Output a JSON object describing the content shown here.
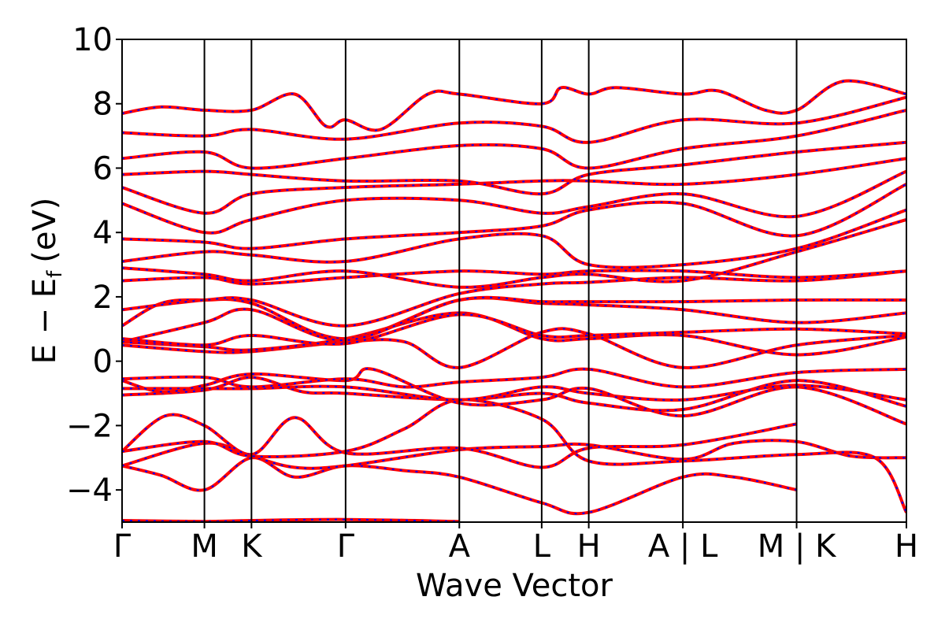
{
  "chart_data": {
    "type": "line",
    "title": "",
    "xlabel": "Wave Vector",
    "ylabel": "E − E",
    "ylabel_subscript": "f",
    "ylabel_unit": "(eV)",
    "ylim": [
      -5,
      10
    ],
    "yticks": [
      -4,
      -2,
      0,
      2,
      4,
      6,
      8,
      10
    ],
    "xlim": [
      0,
      10
    ],
    "kpoints": [
      {
        "label": "Γ",
        "x": 0
      },
      {
        "label": "M",
        "x": 1.05
      },
      {
        "label": "K",
        "x": 1.65
      },
      {
        "label": "Γ",
        "x": 2.85
      },
      {
        "label": "A",
        "x": 4.3
      },
      {
        "label": "L",
        "x": 5.35
      },
      {
        "label": "H",
        "x": 5.95
      },
      {
        "label": "A | L",
        "x": 7.15
      },
      {
        "label": "M | K",
        "x": 8.6
      },
      {
        "label": "H",
        "x": 10
      }
    ],
    "colors": {
      "band_primary": "#ff0000",
      "band_secondary": "#0000ff",
      "axis": "#000000"
    },
    "grid": false,
    "series": [
      {
        "values": [
          [
            0,
            -4.95
          ],
          [
            1.05,
            -4.98
          ],
          [
            1.65,
            -4.95
          ],
          [
            2.85,
            -4.92
          ],
          [
            4.3,
            -4.98
          ]
        ]
      },
      {
        "values": [
          [
            0,
            -3.25
          ],
          [
            0.5,
            -3.55
          ],
          [
            1.05,
            -4.0
          ],
          [
            1.65,
            -3.0
          ],
          [
            2.2,
            -3.6
          ],
          [
            2.85,
            -3.25
          ],
          [
            3.6,
            -3.4
          ],
          [
            4.3,
            -3.6
          ],
          [
            5.35,
            -4.4
          ],
          [
            5.95,
            -4.7
          ],
          [
            7.15,
            -3.6
          ],
          [
            7.8,
            -3.6
          ],
          [
            8.6,
            -4.0
          ]
        ]
      },
      {
        "values": [
          [
            0,
            -3.25
          ],
          [
            1.05,
            -2.55
          ],
          [
            1.65,
            -2.95
          ],
          [
            2.2,
            -3.3
          ],
          [
            2.85,
            -3.25
          ],
          [
            4.3,
            -2.75
          ],
          [
            5.35,
            -2.65
          ],
          [
            5.95,
            -2.6
          ],
          [
            7.15,
            -3.05
          ],
          [
            7.8,
            -2.55
          ],
          [
            8.6,
            -2.5
          ],
          [
            9.3,
            -2.95
          ],
          [
            10,
            -3.0
          ]
        ]
      },
      {
        "values": [
          [
            0,
            -2.8
          ],
          [
            0.55,
            -1.7
          ],
          [
            1.05,
            -2.0
          ],
          [
            1.65,
            -2.9
          ],
          [
            2.2,
            -1.75
          ],
          [
            2.85,
            -2.85
          ],
          [
            4.3,
            -2.7
          ],
          [
            5.35,
            -3.3
          ],
          [
            5.95,
            -2.7
          ],
          [
            7.15,
            -2.6
          ],
          [
            8.6,
            -1.95
          ]
        ]
      },
      {
        "values": [
          [
            0,
            -2.8
          ],
          [
            1.05,
            -2.5
          ],
          [
            1.65,
            -2.95
          ],
          [
            2.85,
            -2.8
          ],
          [
            3.6,
            -2.1
          ],
          [
            4.3,
            -1.2
          ],
          [
            5.35,
            -1.8
          ],
          [
            5.95,
            -3.1
          ],
          [
            7.15,
            -3.1
          ],
          [
            8.6,
            -2.9
          ],
          [
            9.6,
            -3.0
          ],
          [
            10,
            -4.7
          ]
        ]
      },
      {
        "values": [
          [
            0,
            -1.05
          ],
          [
            1.05,
            -0.9
          ],
          [
            1.65,
            -0.5
          ],
          [
            2.3,
            -0.95
          ],
          [
            2.85,
            -1.0
          ],
          [
            4.3,
            -1.2
          ],
          [
            5.35,
            -1.0
          ],
          [
            5.95,
            -1.3
          ],
          [
            7.15,
            -1.5
          ],
          [
            8.6,
            -0.6
          ],
          [
            10,
            -1.4
          ]
        ]
      },
      {
        "values": [
          [
            0,
            -0.85
          ],
          [
            1.05,
            -0.85
          ],
          [
            1.65,
            -0.85
          ],
          [
            2.85,
            -0.8
          ],
          [
            4.3,
            -1.2
          ],
          [
            5.35,
            -0.8
          ],
          [
            5.95,
            -1.0
          ],
          [
            7.15,
            -1.2
          ],
          [
            8.6,
            -0.75
          ],
          [
            10,
            -1.2
          ]
        ]
      },
      {
        "values": [
          [
            0,
            -0.6
          ],
          [
            0.5,
            -0.95
          ],
          [
            1.05,
            -0.75
          ],
          [
            1.65,
            -0.4
          ],
          [
            2.85,
            -0.6
          ],
          [
            3.2,
            -0.25
          ],
          [
            4.3,
            -1.3
          ],
          [
            5.35,
            -1.2
          ],
          [
            5.95,
            -0.85
          ],
          [
            7.15,
            -1.7
          ],
          [
            8.6,
            -0.8
          ],
          [
            10,
            -1.95
          ]
        ]
      },
      {
        "values": [
          [
            0,
            -0.55
          ],
          [
            1.05,
            -0.5
          ],
          [
            1.65,
            -0.8
          ],
          [
            2.85,
            -0.55
          ],
          [
            3.6,
            -0.8
          ],
          [
            4.3,
            -0.65
          ],
          [
            5.35,
            -0.5
          ],
          [
            5.95,
            -0.25
          ],
          [
            7.15,
            -0.8
          ],
          [
            8.6,
            -0.35
          ],
          [
            10,
            -0.25
          ]
        ]
      },
      {
        "values": [
          [
            0,
            0.5
          ],
          [
            1.05,
            0.3
          ],
          [
            1.65,
            0.3
          ],
          [
            2.85,
            0.6
          ],
          [
            3.6,
            0.6
          ],
          [
            4.3,
            -0.2
          ],
          [
            5.35,
            0.9
          ],
          [
            5.95,
            0.85
          ],
          [
            7.15,
            -0.2
          ],
          [
            8.6,
            0.5
          ],
          [
            10,
            0.8
          ]
        ]
      },
      {
        "values": [
          [
            0,
            0.6
          ],
          [
            1.05,
            0.45
          ],
          [
            1.65,
            0.35
          ],
          [
            2.85,
            0.7
          ],
          [
            4.3,
            1.5
          ],
          [
            5.35,
            0.7
          ],
          [
            5.95,
            0.7
          ],
          [
            7.15,
            0.8
          ],
          [
            8.6,
            0.2
          ],
          [
            10,
            0.75
          ]
        ]
      },
      {
        "values": [
          [
            0,
            0.7
          ],
          [
            1.05,
            0.5
          ],
          [
            1.65,
            0.8
          ],
          [
            2.85,
            0.55
          ],
          [
            4.3,
            1.45
          ],
          [
            5.35,
            0.8
          ],
          [
            5.95,
            0.8
          ],
          [
            7.15,
            0.9
          ],
          [
            8.6,
            1.0
          ],
          [
            10,
            0.85
          ]
        ]
      },
      {
        "values": [
          [
            0,
            1.1
          ],
          [
            0.5,
            1.8
          ],
          [
            1.05,
            1.9
          ],
          [
            1.65,
            1.8
          ],
          [
            2.85,
            0.7
          ],
          [
            4.3,
            1.9
          ],
          [
            5.35,
            1.8
          ],
          [
            5.95,
            1.75
          ],
          [
            7.15,
            1.6
          ],
          [
            8.6,
            1.2
          ],
          [
            10,
            1.5
          ]
        ]
      },
      {
        "values": [
          [
            0,
            0.6
          ],
          [
            1.05,
            1.2
          ],
          [
            1.65,
            1.6
          ],
          [
            2.85,
            0.65
          ],
          [
            4.3,
            1.9
          ],
          [
            5.35,
            1.85
          ],
          [
            5.95,
            1.85
          ],
          [
            7.15,
            1.85
          ],
          [
            8.6,
            1.9
          ],
          [
            10,
            1.9
          ]
        ]
      },
      {
        "values": [
          [
            0,
            1.6
          ],
          [
            1.05,
            1.9
          ],
          [
            1.65,
            1.9
          ],
          [
            2.85,
            1.1
          ],
          [
            4.3,
            2.1
          ],
          [
            5.35,
            2.4
          ],
          [
            5.95,
            2.45
          ],
          [
            7.15,
            2.6
          ],
          [
            8.6,
            2.5
          ],
          [
            10,
            2.8
          ]
        ]
      },
      {
        "values": [
          [
            0,
            2.5
          ],
          [
            1.05,
            2.6
          ],
          [
            1.65,
            2.4
          ],
          [
            2.85,
            2.6
          ],
          [
            4.3,
            2.8
          ],
          [
            5.35,
            2.7
          ],
          [
            5.95,
            2.8
          ],
          [
            7.15,
            2.8
          ],
          [
            8.6,
            2.6
          ],
          [
            10,
            2.8
          ]
        ]
      },
      {
        "values": [
          [
            0,
            2.9
          ],
          [
            1.05,
            2.7
          ],
          [
            1.65,
            2.5
          ],
          [
            2.85,
            2.8
          ],
          [
            4.3,
            2.3
          ],
          [
            5.35,
            2.6
          ],
          [
            5.95,
            2.7
          ],
          [
            7.15,
            2.5
          ],
          [
            8.6,
            3.4
          ],
          [
            10,
            4.4
          ]
        ]
      },
      {
        "values": [
          [
            0,
            3.1
          ],
          [
            1.05,
            3.4
          ],
          [
            1.65,
            3.3
          ],
          [
            2.85,
            3.1
          ],
          [
            4.3,
            3.8
          ],
          [
            5.35,
            3.9
          ],
          [
            5.95,
            3.0
          ],
          [
            7.15,
            3.0
          ],
          [
            8.6,
            3.5
          ],
          [
            10,
            4.7
          ]
        ]
      },
      {
        "values": [
          [
            0,
            3.8
          ],
          [
            1.05,
            3.7
          ],
          [
            1.65,
            3.5
          ],
          [
            2.85,
            3.8
          ],
          [
            4.3,
            4.0
          ],
          [
            5.35,
            4.2
          ],
          [
            5.95,
            4.7
          ],
          [
            7.15,
            4.9
          ],
          [
            8.6,
            3.9
          ],
          [
            10,
            5.5
          ]
        ]
      },
      {
        "values": [
          [
            0,
            4.9
          ],
          [
            1.05,
            4.0
          ],
          [
            1.65,
            4.4
          ],
          [
            2.85,
            5.0
          ],
          [
            4.3,
            5.0
          ],
          [
            5.35,
            4.6
          ],
          [
            5.95,
            4.8
          ],
          [
            7.15,
            5.2
          ],
          [
            8.6,
            4.5
          ],
          [
            10,
            5.9
          ]
        ]
      },
      {
        "values": [
          [
            0,
            5.4
          ],
          [
            1.05,
            4.6
          ],
          [
            1.65,
            5.2
          ],
          [
            2.85,
            5.4
          ],
          [
            4.3,
            5.5
          ],
          [
            5.35,
            5.6
          ],
          [
            5.95,
            5.6
          ],
          [
            7.15,
            5.5
          ],
          [
            8.6,
            5.8
          ],
          [
            10,
            6.3
          ]
        ]
      },
      {
        "values": [
          [
            0,
            5.8
          ],
          [
            1.05,
            5.9
          ],
          [
            1.65,
            5.8
          ],
          [
            2.85,
            5.6
          ],
          [
            4.3,
            5.6
          ],
          [
            5.35,
            5.2
          ],
          [
            5.95,
            5.8
          ],
          [
            7.15,
            6.1
          ],
          [
            8.6,
            6.5
          ],
          [
            10,
            6.8
          ]
        ]
      },
      {
        "values": [
          [
            0,
            6.3
          ],
          [
            1.05,
            6.5
          ],
          [
            1.65,
            6.0
          ],
          [
            2.85,
            6.3
          ],
          [
            4.3,
            6.7
          ],
          [
            5.35,
            6.6
          ],
          [
            5.95,
            6.0
          ],
          [
            7.15,
            6.6
          ],
          [
            8.6,
            7.0
          ],
          [
            10,
            7.8
          ]
        ]
      },
      {
        "values": [
          [
            0,
            7.1
          ],
          [
            1.05,
            7.0
          ],
          [
            1.65,
            7.2
          ],
          [
            2.85,
            6.9
          ],
          [
            4.3,
            7.4
          ],
          [
            5.35,
            7.3
          ],
          [
            5.95,
            6.8
          ],
          [
            7.15,
            7.5
          ],
          [
            8.6,
            7.4
          ],
          [
            10,
            8.2
          ]
        ]
      },
      {
        "values": [
          [
            0,
            7.7
          ],
          [
            0.5,
            7.9
          ],
          [
            1.05,
            7.8
          ],
          [
            1.65,
            7.8
          ],
          [
            2.2,
            8.3
          ],
          [
            2.6,
            7.3
          ],
          [
            2.85,
            7.5
          ],
          [
            3.3,
            7.2
          ],
          [
            3.9,
            8.3
          ],
          [
            4.3,
            8.3
          ],
          [
            5.35,
            8.0
          ],
          [
            5.6,
            8.5
          ],
          [
            5.95,
            8.3
          ],
          [
            6.3,
            8.5
          ],
          [
            7.15,
            8.3
          ],
          [
            7.6,
            8.4
          ],
          [
            8.2,
            7.8
          ],
          [
            8.6,
            7.8
          ],
          [
            9.2,
            8.7
          ],
          [
            10,
            8.3
          ]
        ]
      }
    ]
  }
}
